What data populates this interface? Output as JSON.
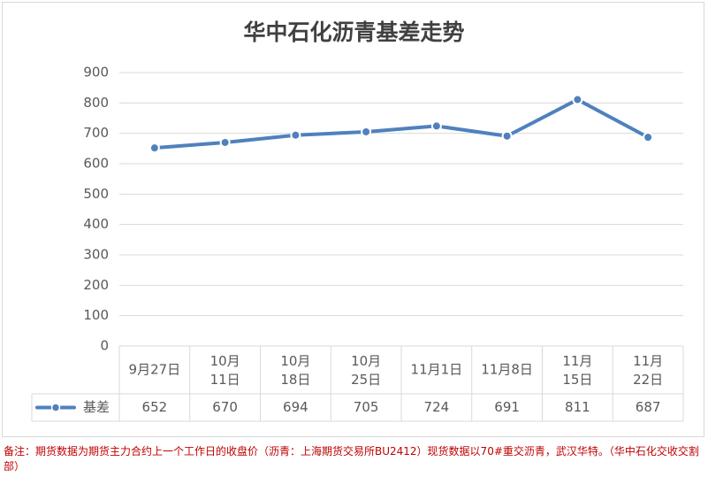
{
  "chart_data": {
    "type": "line",
    "title": "华中石化沥青基差走势",
    "categories": [
      "9月27日",
      "10月11日",
      "10月18日",
      "10月25日",
      "11月1日",
      "11月8日",
      "11月15日",
      "11月22日"
    ],
    "series": [
      {
        "name": "基差",
        "values": [
          652,
          670,
          694,
          705,
          724,
          691,
          811,
          687
        ]
      }
    ],
    "ylim": [
      0,
      900
    ],
    "yticks": [
      "0",
      "100",
      "200",
      "300",
      "400",
      "500",
      "600",
      "700",
      "800",
      "900"
    ],
    "table_values": [
      "652",
      "670",
      "694",
      "705",
      "724",
      "691",
      "811",
      "687"
    ],
    "grid": true,
    "legend": "data-table",
    "line_color": "#4f81bd"
  },
  "footnote": "备注：期货数据为期货主力合约上一个工作日的收盘价（沥青：上海期货交易所BU2412）现货数据以70#重交沥青，武汉华特。（华中石化交收交割部）"
}
